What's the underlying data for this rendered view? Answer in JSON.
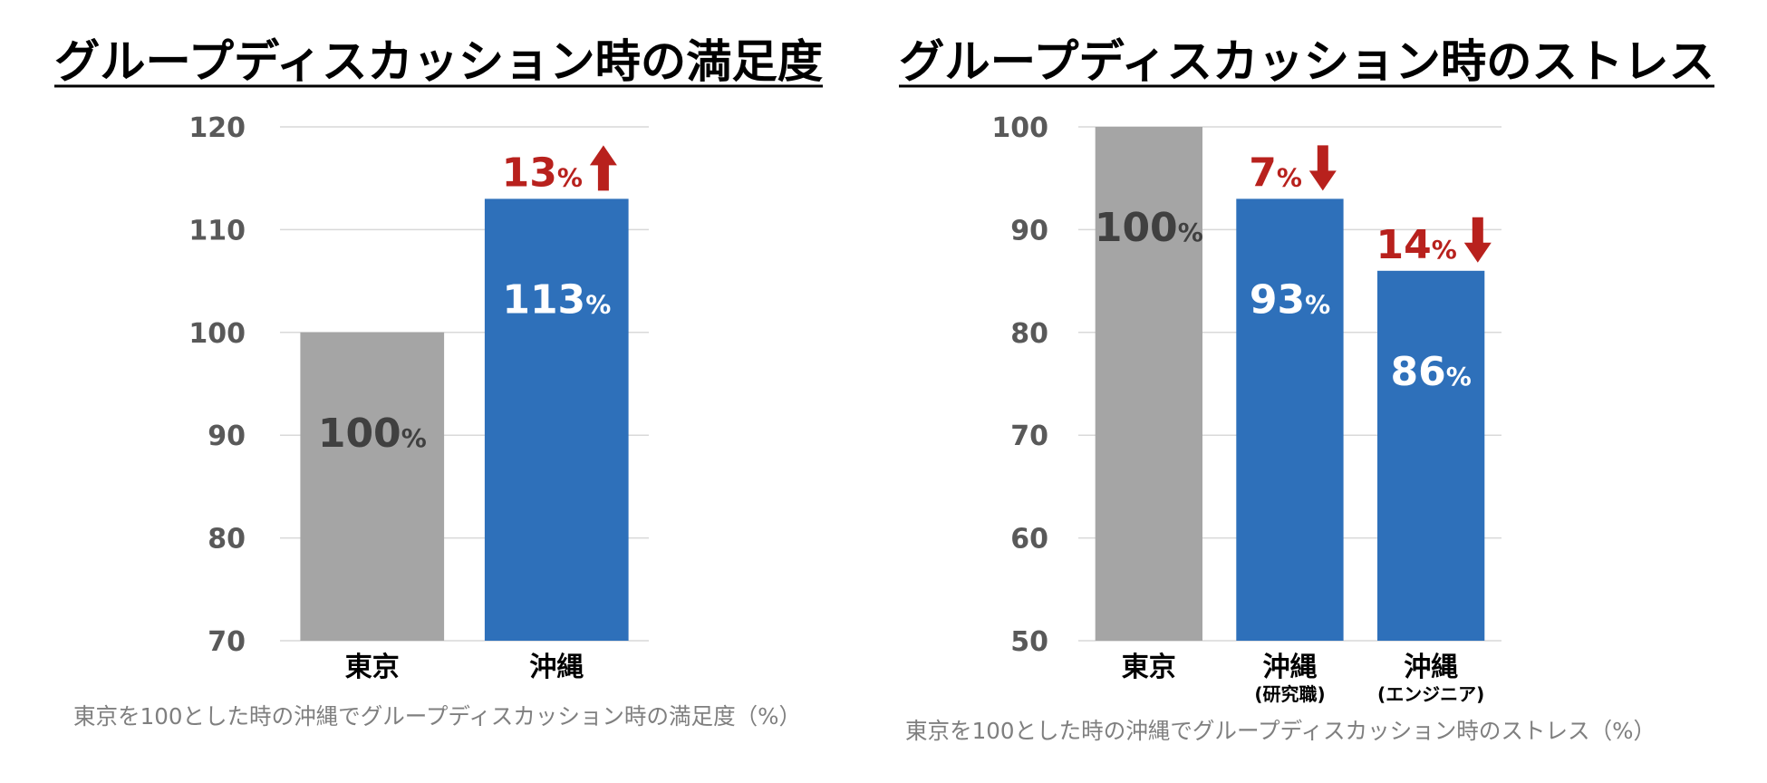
{
  "chart_data": [
    {
      "type": "bar",
      "title": "グループディスカッション時の満足度",
      "caption": "東京を100とした時の沖縄でグループディスカッション時の満足度（%）",
      "categories": [
        "東京",
        "沖縄"
      ],
      "values": [
        100,
        113
      ],
      "value_unit": "%",
      "bar_colors": [
        "#A5A5A5",
        "#2E70BA"
      ],
      "value_label_colors": [
        "#404040",
        "#FFFFFF"
      ],
      "changes": [
        null,
        {
          "value": 13,
          "unit": "%",
          "direction": "up"
        }
      ],
      "ylim": [
        70,
        120
      ],
      "yticks": [
        70,
        80,
        90,
        100,
        110,
        120
      ],
      "grid": true
    },
    {
      "type": "bar",
      "title": "グループディスカッション時のストレス",
      "caption": "東京を100とした時の沖縄でグループディスカッション時のストレス（%）",
      "categories": [
        "東京",
        "沖縄",
        "沖縄"
      ],
      "category_sublabels": [
        "",
        "(研究職)",
        "(エンジニア)"
      ],
      "values": [
        100,
        93,
        86
      ],
      "value_unit": "%",
      "bar_colors": [
        "#A5A5A5",
        "#2E70BA",
        "#2E70BA"
      ],
      "value_label_colors": [
        "#404040",
        "#FFFFFF",
        "#FFFFFF"
      ],
      "changes": [
        null,
        {
          "value": 7,
          "unit": "%",
          "direction": "down"
        },
        {
          "value": 14,
          "unit": "%",
          "direction": "down"
        }
      ],
      "ylim": [
        50,
        100
      ],
      "yticks": [
        50,
        60,
        70,
        80,
        90,
        100
      ],
      "grid": true
    }
  ],
  "colors": {
    "gridline": "#D9D9D9",
    "axis_label": "#595959",
    "change_annotation": "#B8211D"
  }
}
